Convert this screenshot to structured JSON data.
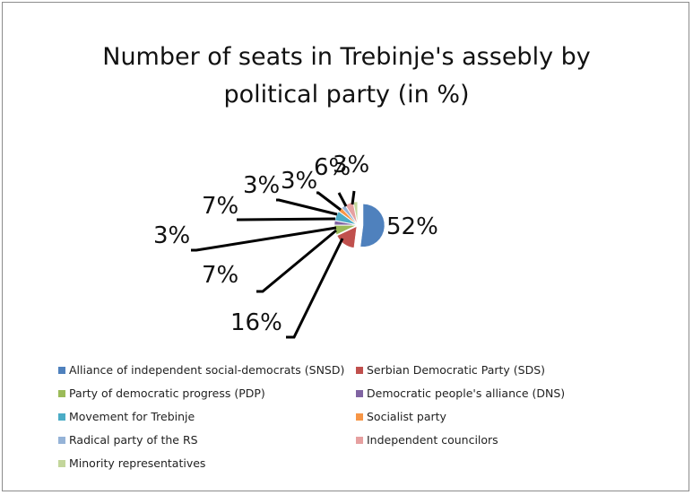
{
  "chart_data": {
    "type": "pie",
    "title": [
      "Number of seats in Trebinje's assebly by",
      "political party (in %)"
    ],
    "slices": [
      {
        "name": "Alliance of independent social-democrats  (SNSD)",
        "value": 52,
        "label": "52%",
        "color": "#4f81bd"
      },
      {
        "name": "Serbian Democratic  Party (SDS)",
        "value": 16,
        "label": "16%",
        "color": "#c0504d"
      },
      {
        "name": "Party of democratic  progress (PDP)",
        "value": 7,
        "label": "7%",
        "color": "#9bbb59"
      },
      {
        "name": "Democratic people's alliance  (DNS)",
        "value": 3,
        "label": "3%",
        "color": "#8064a2"
      },
      {
        "name": "Movement for Trebinje",
        "value": 7,
        "label": "7%",
        "color": "#4bacc6"
      },
      {
        "name": "Socialist party",
        "value": 3,
        "label": "3%",
        "color": "#f79646"
      },
      {
        "name": "Radical party of the RS",
        "value": 3,
        "label": "3%",
        "color": "#95b3d7"
      },
      {
        "name": "Independent councilors",
        "value": 6,
        "label": "6%",
        "color": "#e6a0a0"
      },
      {
        "name": "Minority representatives",
        "value": 3,
        "label": "3%",
        "color": "#c3d69b"
      }
    ],
    "legend_position": "bottom"
  }
}
